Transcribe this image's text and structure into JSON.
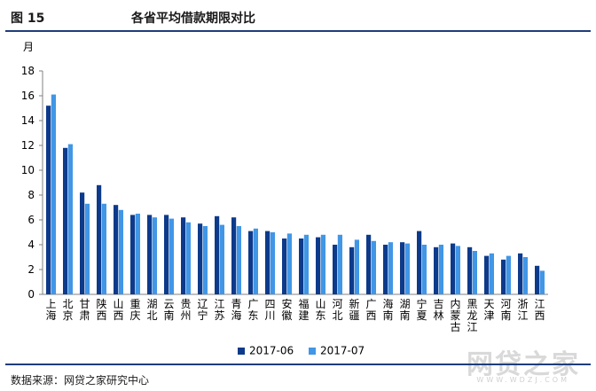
{
  "figure": {
    "number": "图  15",
    "title": "各省平均借款期限对比",
    "source": "数据来源：网贷之家研究中心",
    "watermark": "网贷之家",
    "watermark_url": "WWW.WDZJ.COM"
  },
  "colors": {
    "series1": "#0d3a8a",
    "series2": "#4196e6",
    "axis": "#808080"
  },
  "chart_data": {
    "type": "bar",
    "ylabel": "月",
    "ylim": [
      0,
      18
    ],
    "yticks": [
      0,
      2,
      4,
      6,
      8,
      10,
      12,
      14,
      16,
      18
    ],
    "categories": [
      "上海",
      "北京",
      "甘肃",
      "陕西",
      "山西",
      "重庆",
      "湖北",
      "云南",
      "贵州",
      "辽宁",
      "江苏",
      "青海",
      "广东",
      "四川",
      "安徽",
      "福建",
      "山东",
      "河北",
      "新疆",
      "广西",
      "海南",
      "湖南",
      "宁夏",
      "吉林",
      "内蒙古",
      "黑龙江",
      "天津",
      "河南",
      "浙江",
      "江西"
    ],
    "series": [
      {
        "name": "2017-06",
        "values": [
          15.2,
          11.8,
          8.2,
          8.8,
          7.2,
          6.4,
          6.4,
          6.4,
          6.2,
          5.7,
          6.3,
          6.2,
          5.1,
          5.1,
          4.5,
          4.5,
          4.6,
          4.0,
          3.8,
          4.8,
          4.0,
          4.2,
          5.1,
          3.8,
          4.1,
          3.8,
          3.1,
          2.8,
          3.3,
          2.3
        ]
      },
      {
        "name": "2017-07",
        "values": [
          16.1,
          12.1,
          7.3,
          7.3,
          6.8,
          6.5,
          6.2,
          6.1,
          5.8,
          5.5,
          5.6,
          5.5,
          5.3,
          5.0,
          4.9,
          4.8,
          4.8,
          4.8,
          4.4,
          4.3,
          4.2,
          4.1,
          4.0,
          4.0,
          3.9,
          3.5,
          3.3,
          3.1,
          3.0,
          1.9
        ]
      }
    ]
  }
}
